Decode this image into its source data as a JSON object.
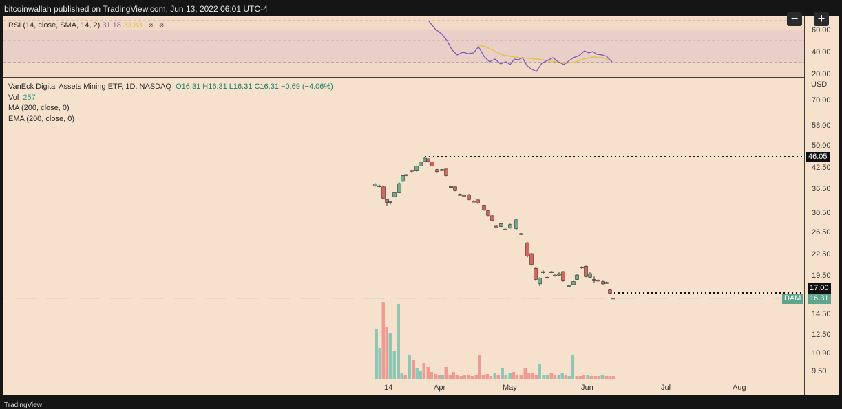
{
  "header": {
    "title": "bitcoinwallah published on TradingView.com, Jun 13, 2022 06:01 UTC-4"
  },
  "footer": {
    "brand": "TradingView"
  },
  "controls": {
    "minus": "−",
    "plus": "+"
  },
  "rsi": {
    "label": "RSI (14, close, SMA, 14, 2)",
    "value": "31.18",
    "sma_value": "33.83",
    "icons": [
      "eye-off-icon",
      "eye-off-icon"
    ],
    "axis_ticks": [
      "60.00",
      "40.00",
      "20.00"
    ],
    "colors": {
      "rsi": "#7e57c2",
      "sma": "#e6c24a"
    },
    "rsi_points": [
      [
        623,
        31
      ],
      [
        632,
        42
      ],
      [
        642,
        50
      ],
      [
        650,
        60
      ],
      [
        656,
        72
      ],
      [
        664,
        80
      ],
      [
        672,
        76
      ],
      [
        680,
        78
      ],
      [
        688,
        77
      ],
      [
        695,
        68
      ],
      [
        703,
        82
      ],
      [
        711,
        90
      ],
      [
        719,
        86
      ],
      [
        727,
        93
      ],
      [
        735,
        90
      ],
      [
        741,
        94
      ],
      [
        747,
        86
      ],
      [
        753,
        87
      ],
      [
        759,
        84
      ],
      [
        765,
        95
      ],
      [
        771,
        100
      ],
      [
        779,
        104
      ],
      [
        787,
        92
      ],
      [
        795,
        88
      ],
      [
        803,
        84
      ],
      [
        811,
        90
      ],
      [
        819,
        94
      ],
      [
        827,
        88
      ],
      [
        833,
        84
      ],
      [
        841,
        81
      ],
      [
        849,
        74
      ],
      [
        855,
        77
      ],
      [
        861,
        75
      ],
      [
        867,
        79
      ],
      [
        875,
        80
      ],
      [
        881,
        82
      ],
      [
        889,
        90
      ]
    ],
    "sma_points": [
      [
        692,
        65
      ],
      [
        705,
        68
      ],
      [
        718,
        74
      ],
      [
        730,
        80
      ],
      [
        742,
        82
      ],
      [
        755,
        84
      ],
      [
        768,
        85
      ],
      [
        781,
        86
      ],
      [
        795,
        88
      ],
      [
        808,
        90
      ],
      [
        821,
        92
      ],
      [
        833,
        91
      ],
      [
        847,
        86
      ],
      [
        861,
        83
      ],
      [
        875,
        84
      ],
      [
        885,
        87
      ]
    ]
  },
  "main_legend": {
    "symbol": "VanEck Digital Assets Mining ETF, 1D, NASDAQ",
    "ohlc": "O16.31  H16.31  L16.31  C16.31  −0.69 (−4.06%)",
    "vol_label": "Vol",
    "vol_value": "257",
    "ma": "MA (200, close, 0)",
    "ema": "EMA (200, close, 0)"
  },
  "price_axis": {
    "unit": "USD",
    "ticks": [
      "70.00",
      "58.00",
      "50.00",
      "42.50",
      "36.50",
      "30.50",
      "26.50",
      "22.50",
      "19.50",
      "14.50",
      "12.50",
      "10.90",
      "9.50"
    ],
    "tag_high": "46.05",
    "tag_current": "17.00",
    "tag_symbol": "DAM",
    "tag_last": "16.31"
  },
  "time_axis": {
    "labels": [
      "14",
      "Apr",
      "May",
      "Jun",
      "Jul",
      "Aug"
    ]
  },
  "colors": {
    "up": "#6aad8e",
    "down": "#d8645b",
    "vol_up": "#8fc7b6",
    "vol_down": "#ef9a93"
  },
  "chart_data": {
    "type": "candlestick",
    "title": "VanEck Digital Assets Mining ETF, 1D, NASDAQ",
    "ohlc_last": {
      "open": 16.31,
      "high": 16.31,
      "low": 16.31,
      "close": 16.31,
      "change": -0.69,
      "change_pct": -4.06
    },
    "levels": {
      "high": 46.05,
      "current": 17.0,
      "last": 16.31
    },
    "candles": [
      {
        "x": 545,
        "o": 37.8,
        "h": 38.0,
        "l": 37.1,
        "c": 37.2,
        "up": true
      },
      {
        "x": 551,
        "o": 37.3,
        "h": 37.6,
        "l": 36.9,
        "c": 37.1,
        "up": false
      },
      {
        "x": 557,
        "o": 37.0,
        "h": 37.2,
        "l": 33.8,
        "c": 34.0,
        "up": false
      },
      {
        "x": 562,
        "o": 33.7,
        "h": 33.8,
        "l": 32.2,
        "c": 33.0,
        "up": false
      },
      {
        "x": 567,
        "o": 33.0,
        "h": 33.3,
        "l": 32.5,
        "c": 33.2,
        "up": true
      },
      {
        "x": 573,
        "o": 34.4,
        "h": 35.6,
        "l": 34.2,
        "c": 35.4,
        "up": true
      },
      {
        "x": 580,
        "o": 35.4,
        "h": 38.2,
        "l": 35.3,
        "c": 37.9,
        "up": true
      },
      {
        "x": 585,
        "o": 38.5,
        "h": 40.4,
        "l": 38.4,
        "c": 40.2,
        "up": true
      },
      {
        "x": 590,
        "o": 40.3,
        "h": 40.6,
        "l": 40.0,
        "c": 40.5,
        "up": false
      },
      {
        "x": 598,
        "o": 41.5,
        "h": 42.0,
        "l": 41.2,
        "c": 41.8,
        "up": false
      },
      {
        "x": 605,
        "o": 41.6,
        "h": 43.3,
        "l": 41.4,
        "c": 43.1,
        "up": true
      },
      {
        "x": 611,
        "o": 43.2,
        "h": 44.6,
        "l": 43.0,
        "c": 44.4,
        "up": true
      },
      {
        "x": 617,
        "o": 44.6,
        "h": 46.05,
        "l": 44.5,
        "c": 45.7,
        "up": true
      },
      {
        "x": 622,
        "o": 45.5,
        "h": 45.7,
        "l": 44.3,
        "c": 44.6,
        "up": false
      },
      {
        "x": 628,
        "o": 44.4,
        "h": 44.5,
        "l": 43.0,
        "c": 43.2,
        "up": false
      },
      {
        "x": 635,
        "o": 42.0,
        "h": 42.2,
        "l": 41.2,
        "c": 41.4,
        "up": false
      },
      {
        "x": 642,
        "o": 42.0,
        "h": 42.2,
        "l": 41.7,
        "c": 41.9,
        "up": false
      },
      {
        "x": 648,
        "o": 42.2,
        "h": 42.3,
        "l": 40.0,
        "c": 40.2,
        "up": false
      },
      {
        "x": 655,
        "o": 37.1,
        "h": 37.2,
        "l": 36.8,
        "c": 37.0,
        "up": false
      },
      {
        "x": 661,
        "o": 37.0,
        "h": 37.1,
        "l": 35.8,
        "c": 36.0,
        "up": false
      },
      {
        "x": 668,
        "o": 35.0,
        "h": 35.2,
        "l": 34.8,
        "c": 35.0,
        "up": false
      },
      {
        "x": 674,
        "o": 34.8,
        "h": 35.0,
        "l": 34.5,
        "c": 34.6,
        "up": false
      },
      {
        "x": 681,
        "o": 34.9,
        "h": 35.1,
        "l": 33.5,
        "c": 33.7,
        "up": false
      },
      {
        "x": 688,
        "o": 33.3,
        "h": 33.5,
        "l": 33.0,
        "c": 33.2,
        "up": false
      },
      {
        "x": 694,
        "o": 33.6,
        "h": 33.7,
        "l": 32.6,
        "c": 32.8,
        "up": false
      },
      {
        "x": 703,
        "o": 32.3,
        "h": 32.4,
        "l": 31.0,
        "c": 31.2,
        "up": false
      },
      {
        "x": 709,
        "o": 31.0,
        "h": 31.2,
        "l": 29.8,
        "c": 30.0,
        "up": false
      },
      {
        "x": 715,
        "o": 29.9,
        "h": 30.0,
        "l": 28.7,
        "c": 28.9,
        "up": false
      },
      {
        "x": 721,
        "o": 27.7,
        "h": 27.8,
        "l": 27.5,
        "c": 27.6,
        "up": false
      },
      {
        "x": 728,
        "o": 27.6,
        "h": 28.4,
        "l": 27.5,
        "c": 28.2,
        "up": true
      },
      {
        "x": 734,
        "o": 27.1,
        "h": 27.2,
        "l": 26.9,
        "c": 27.0,
        "up": true
      },
      {
        "x": 741,
        "o": 27.3,
        "h": 28.2,
        "l": 27.2,
        "c": 28.0,
        "up": true
      },
      {
        "x": 750,
        "o": 27.2,
        "h": 29.2,
        "l": 27.0,
        "c": 29.0,
        "up": true
      },
      {
        "x": 757,
        "o": 26.2,
        "h": 26.3,
        "l": 26.0,
        "c": 26.1,
        "up": false
      },
      {
        "x": 766,
        "o": 24.5,
        "h": 24.6,
        "l": 22.0,
        "c": 22.2,
        "up": false
      },
      {
        "x": 772,
        "o": 22.6,
        "h": 22.7,
        "l": 20.7,
        "c": 20.9,
        "up": false
      },
      {
        "x": 778,
        "o": 20.3,
        "h": 20.4,
        "l": 18.5,
        "c": 18.7,
        "up": false
      },
      {
        "x": 784,
        "o": 18.1,
        "h": 19.0,
        "l": 17.8,
        "c": 18.9,
        "up": true
      },
      {
        "x": 789,
        "o": 19.7,
        "h": 20.0,
        "l": 19.5,
        "c": 19.8,
        "up": true
      },
      {
        "x": 795,
        "o": 19.0,
        "h": 19.1,
        "l": 18.9,
        "c": 19.0,
        "up": false
      },
      {
        "x": 801,
        "o": 19.8,
        "h": 19.9,
        "l": 19.6,
        "c": 19.7,
        "up": false
      },
      {
        "x": 806,
        "o": 19.2,
        "h": 19.4,
        "l": 19.1,
        "c": 19.3,
        "up": true
      },
      {
        "x": 812,
        "o": 19.3,
        "h": 19.7,
        "l": 19.2,
        "c": 19.5,
        "up": true
      },
      {
        "x": 818,
        "o": 19.8,
        "h": 19.9,
        "l": 18.4,
        "c": 18.5,
        "up": false
      },
      {
        "x": 826,
        "o": 17.9,
        "h": 18.0,
        "l": 17.8,
        "c": 17.9,
        "up": true
      },
      {
        "x": 833,
        "o": 18.0,
        "h": 18.5,
        "l": 17.9,
        "c": 18.4,
        "up": true
      },
      {
        "x": 838,
        "o": 18.7,
        "h": 19.4,
        "l": 18.6,
        "c": 19.3,
        "up": true
      },
      {
        "x": 845,
        "o": 20.4,
        "h": 20.6,
        "l": 20.2,
        "c": 20.5,
        "up": false
      },
      {
        "x": 851,
        "o": 20.6,
        "h": 20.7,
        "l": 19.0,
        "c": 19.1,
        "up": false
      },
      {
        "x": 857,
        "o": 19.0,
        "h": 19.7,
        "l": 18.9,
        "c": 19.5,
        "up": true
      },
      {
        "x": 863,
        "o": 18.7,
        "h": 19.1,
        "l": 18.2,
        "c": 18.5,
        "up": false
      },
      {
        "x": 869,
        "o": 18.6,
        "h": 18.7,
        "l": 18.5,
        "c": 18.6,
        "up": false
      },
      {
        "x": 876,
        "o": 18.4,
        "h": 18.5,
        "l": 18.0,
        "c": 18.1,
        "up": false
      },
      {
        "x": 881,
        "o": 18.3,
        "h": 18.4,
        "l": 18.1,
        "c": 18.2,
        "up": false
      },
      {
        "x": 886,
        "o": 17.3,
        "h": 17.4,
        "l": 16.8,
        "c": 16.9,
        "up": false
      },
      {
        "x": 891,
        "o": 16.31,
        "h": 16.31,
        "l": 16.31,
        "c": 16.31,
        "up": false
      }
    ],
    "volume_bars": [
      {
        "x": 547,
        "top": 478,
        "up": true
      },
      {
        "x": 552,
        "top": 506,
        "up": true
      },
      {
        "x": 557,
        "top": 440,
        "up": false
      },
      {
        "x": 562,
        "top": 475,
        "up": false
      },
      {
        "x": 567,
        "top": 484,
        "up": true
      },
      {
        "x": 573,
        "top": 510,
        "up": true
      },
      {
        "x": 579,
        "top": 442,
        "up": true
      },
      {
        "x": 584,
        "top": 542,
        "up": true
      },
      {
        "x": 589,
        "top": 545,
        "up": false
      },
      {
        "x": 595,
        "top": 517,
        "up": true
      },
      {
        "x": 601,
        "top": 523,
        "up": false
      },
      {
        "x": 606,
        "top": 535,
        "up": true
      },
      {
        "x": 611,
        "top": 540,
        "up": true
      },
      {
        "x": 616,
        "top": 528,
        "up": false
      },
      {
        "x": 622,
        "top": 534,
        "up": false
      },
      {
        "x": 627,
        "top": 541,
        "up": false
      },
      {
        "x": 633,
        "top": 544,
        "up": false
      },
      {
        "x": 638,
        "top": 546,
        "up": false
      },
      {
        "x": 643,
        "top": 545,
        "up": true
      },
      {
        "x": 648,
        "top": 534,
        "up": false
      },
      {
        "x": 654,
        "top": 546,
        "up": false
      },
      {
        "x": 659,
        "top": 541,
        "up": false
      },
      {
        "x": 664,
        "top": 545,
        "up": false
      },
      {
        "x": 670,
        "top": 547,
        "up": false
      },
      {
        "x": 675,
        "top": 546,
        "up": false
      },
      {
        "x": 681,
        "top": 545,
        "up": false
      },
      {
        "x": 686,
        "top": 547,
        "up": false
      },
      {
        "x": 692,
        "top": 546,
        "up": false
      },
      {
        "x": 697,
        "top": 516,
        "up": false
      },
      {
        "x": 702,
        "top": 546,
        "up": false
      },
      {
        "x": 708,
        "top": 544,
        "up": false
      },
      {
        "x": 713,
        "top": 547,
        "up": false
      },
      {
        "x": 719,
        "top": 542,
        "up": true
      },
      {
        "x": 724,
        "top": 546,
        "up": false
      },
      {
        "x": 730,
        "top": 535,
        "up": true
      },
      {
        "x": 735,
        "top": 546,
        "up": true
      },
      {
        "x": 741,
        "top": 543,
        "up": true
      },
      {
        "x": 746,
        "top": 541,
        "up": false
      },
      {
        "x": 751,
        "top": 546,
        "up": false
      },
      {
        "x": 757,
        "top": 545,
        "up": false
      },
      {
        "x": 763,
        "top": 535,
        "up": false
      },
      {
        "x": 768,
        "top": 543,
        "up": false
      },
      {
        "x": 773,
        "top": 543,
        "up": false
      },
      {
        "x": 779,
        "top": 545,
        "up": false
      },
      {
        "x": 784,
        "top": 530,
        "up": true
      },
      {
        "x": 790,
        "top": 546,
        "up": true
      },
      {
        "x": 795,
        "top": 545,
        "up": true
      },
      {
        "x": 801,
        "top": 543,
        "up": false
      },
      {
        "x": 806,
        "top": 546,
        "up": false
      },
      {
        "x": 812,
        "top": 545,
        "up": true
      },
      {
        "x": 817,
        "top": 542,
        "up": true
      },
      {
        "x": 822,
        "top": 545,
        "up": false
      },
      {
        "x": 827,
        "top": 547,
        "up": true
      },
      {
        "x": 832,
        "top": 516,
        "up": true
      },
      {
        "x": 838,
        "top": 547,
        "up": false
      },
      {
        "x": 843,
        "top": 547,
        "up": false
      },
      {
        "x": 848,
        "top": 546,
        "up": false
      },
      {
        "x": 854,
        "top": 546,
        "up": true
      },
      {
        "x": 859,
        "top": 547,
        "up": false
      },
      {
        "x": 865,
        "top": 547,
        "up": false
      },
      {
        "x": 870,
        "top": 547,
        "up": false
      },
      {
        "x": 875,
        "top": 546,
        "up": true
      },
      {
        "x": 881,
        "top": 547,
        "up": false
      },
      {
        "x": 886,
        "top": 547,
        "up": false
      },
      {
        "x": 891,
        "top": 547,
        "up": false
      }
    ]
  }
}
